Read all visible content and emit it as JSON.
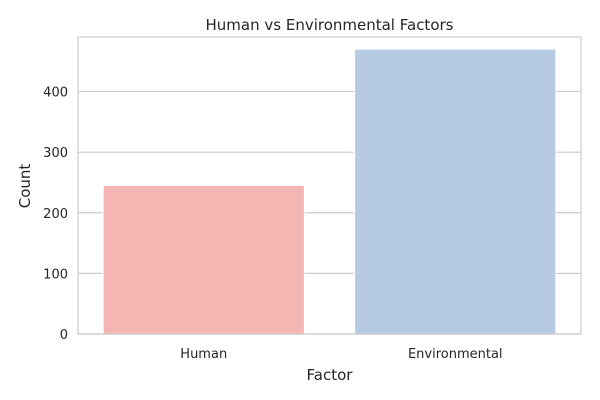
{
  "chart_data": {
    "type": "bar",
    "title": "Human vs Environmental Factors",
    "xlabel": "Factor",
    "ylabel": "Count",
    "categories": [
      "Human",
      "Environmental"
    ],
    "values": [
      245,
      470
    ],
    "ylim": [
      0,
      490
    ],
    "yticks": [
      0,
      100,
      200,
      300,
      400
    ],
    "grid": true,
    "colors": [
      "#f4b6b2",
      "#b6cbe1"
    ],
    "grid_color": "#cccccc",
    "frame_color": "#cccccc"
  }
}
